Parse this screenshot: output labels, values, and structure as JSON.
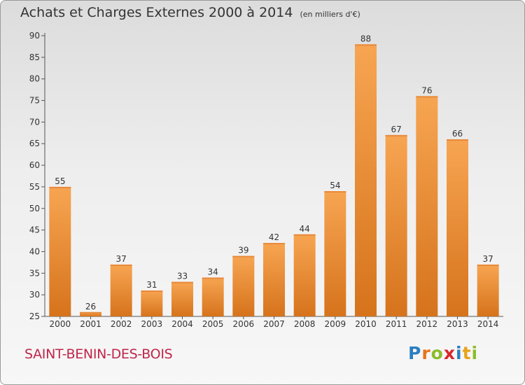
{
  "title": "Achats et Charges Externes 2000 à 2014",
  "unit": "(en milliers d'€)",
  "commune": "SAINT-BENIN-DES-BOIS",
  "logo": {
    "text": "Proxiti",
    "letters": [
      {
        "ch": "P",
        "color": "#2b7fc1"
      },
      {
        "ch": "r",
        "color": "#e8731a"
      },
      {
        "ch": "o",
        "color": "#8cbd2a"
      },
      {
        "ch": "x",
        "color": "#d9262f"
      },
      {
        "ch": "i",
        "color": "#2b7fc1"
      },
      {
        "ch": "t",
        "color": "#e8a21a"
      },
      {
        "ch": "i",
        "color": "#8cbd2a"
      }
    ]
  },
  "colors": {
    "bar_top": "#f7a552",
    "bar_bottom": "#d6731c",
    "title": "#333333",
    "commune": "#c0264a"
  },
  "chart_data": {
    "type": "bar",
    "title": "Achats et Charges Externes 2000 à 2014",
    "categories": [
      "2000",
      "2001",
      "2002",
      "2003",
      "2004",
      "2005",
      "2006",
      "2007",
      "2008",
      "2009",
      "2010",
      "2011",
      "2012",
      "2013",
      "2014"
    ],
    "values": [
      55,
      26,
      37,
      31,
      33,
      34,
      39,
      42,
      44,
      54,
      88,
      67,
      76,
      66,
      37
    ],
    "ylim": [
      25,
      90
    ],
    "yticks": [
      25,
      30,
      35,
      40,
      45,
      50,
      55,
      60,
      65,
      70,
      75,
      80,
      85,
      90
    ],
    "grid": false,
    "xlabel": "",
    "ylabel": ""
  }
}
